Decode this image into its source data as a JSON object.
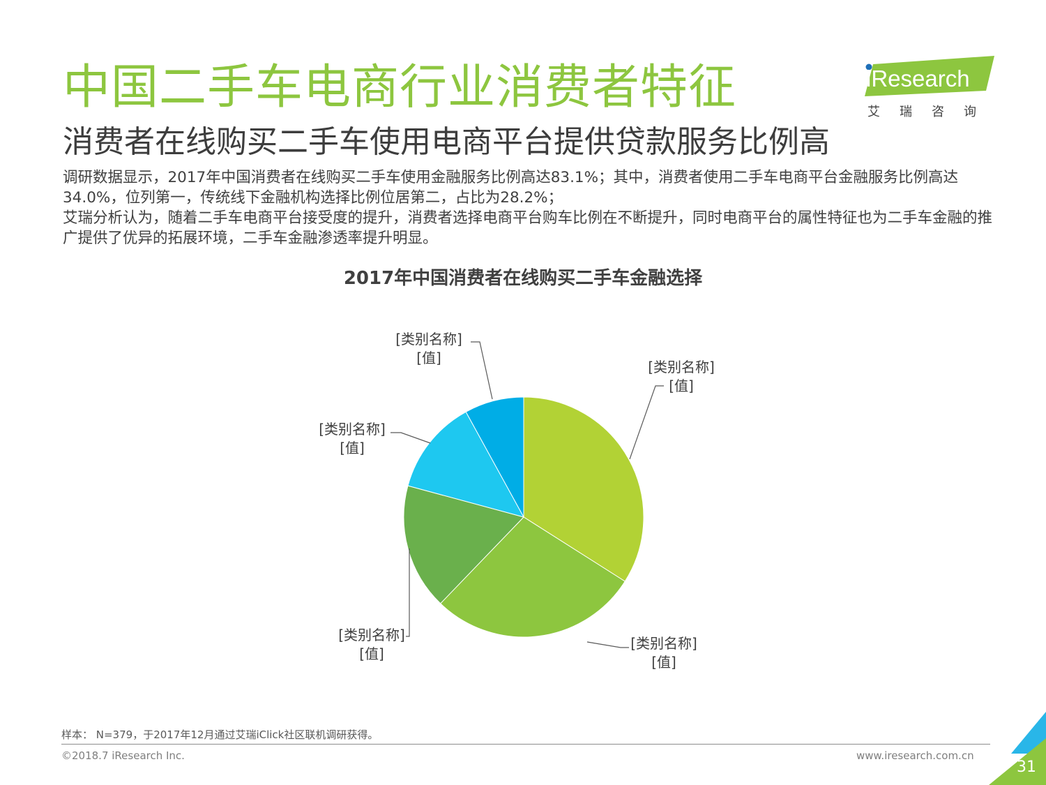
{
  "header": {
    "title": "中国二手车电商行业消费者特征",
    "subtitle": "消费者在线购买二手车使用电商平台提供贷款服务比例高",
    "paragraph1": "调研数据显示，2017年中国消费者在线购买二手车使用金融服务比例高达83.1%；其中，消费者使用二手车电商平台金融服务比例高达34.0%，位列第一，传统线下金融机构选择比例位居第二，占比为28.2%；",
    "paragraph2": "艾瑞分析认为，随着二手车电商平台接受度的提升，消费者选择电商平台购车比例在不断提升，同时电商平台的属性特征也为二手车金融的推广提供了优异的拓展环境，二手车金融渗透率提升明显。"
  },
  "logo": {
    "text": "iResearch",
    "subtext": "艾瑞咨询"
  },
  "chart_data": {
    "type": "pie",
    "title": "2017年中国消费者在线购买二手车金融选择",
    "values": [
      34.0,
      28.2,
      17.0,
      12.8,
      8.0
    ],
    "labels": [
      {
        "name": "[类别名称]",
        "value": "[值]"
      },
      {
        "name": "[类别名称]",
        "value": "[值]"
      },
      {
        "name": "[类别名称]",
        "value": "[值]"
      },
      {
        "name": "[类别名称]",
        "value": "[值]"
      },
      {
        "name": "[类别名称]",
        "value": "[值]"
      }
    ],
    "colors": [
      "#b2d235",
      "#8dc63f",
      "#6ab04c",
      "#1ec8f0",
      "#00ade6"
    ]
  },
  "footer": {
    "note": "样本： N=379，于2017年12月通过艾瑞iClick社区联机调研获得。",
    "copyright": "©2018.7 iResearch Inc.",
    "website": "www.iresearch.com.cn",
    "page": "31"
  },
  "colors": {
    "title_green": "#8dc63f",
    "accent_blue": "#29b6e8"
  }
}
